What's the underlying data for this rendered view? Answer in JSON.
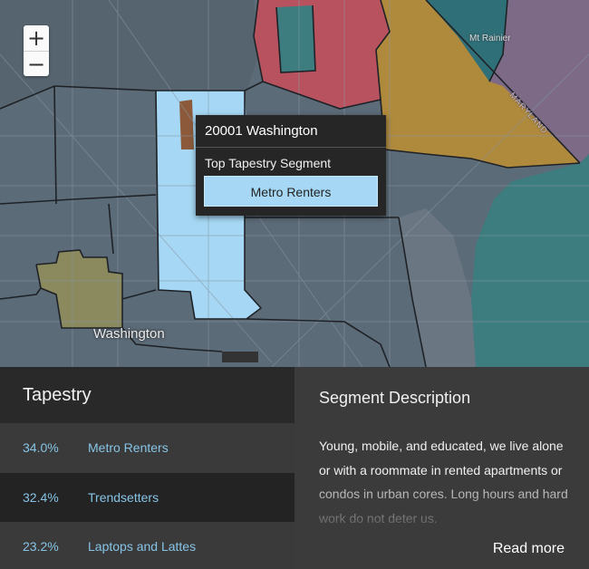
{
  "map": {
    "zoom_in_label": "+",
    "zoom_out_label": "−",
    "labels": {
      "washington": "Washington",
      "mt_rainier": "Mt Rainier",
      "maryland": "MARYLAND"
    },
    "colors": {
      "base": "#5c6b78",
      "selected_zip": "#a6d8f5",
      "red_zone": "#b9525f",
      "gold_zone": "#b08a3c",
      "purple_zone": "#7c6a86",
      "teal_zone": "#3d7d80",
      "teal_dark": "#2e6f78",
      "olive_zone": "#8a8a5e",
      "brown_zone": "#8c5a3a"
    }
  },
  "popup": {
    "title": "20001 Washington",
    "subtitle": "Top Tapestry Segment",
    "segment_button": "Metro Renters"
  },
  "tapestry": {
    "header": "Tapestry",
    "rows": [
      {
        "percent": "34.0%",
        "name": "Metro Renters"
      },
      {
        "percent": "32.4%",
        "name": "Trendsetters"
      },
      {
        "percent": "23.2%",
        "name": "Laptops and Lattes"
      }
    ]
  },
  "description": {
    "title": "Segment Description",
    "body": "Young, mobile, and educated, we live alone or with a roommate in rented apartments or condos in urban cores. Long hours and hard work do not deter us.",
    "read_more": "Read more"
  }
}
